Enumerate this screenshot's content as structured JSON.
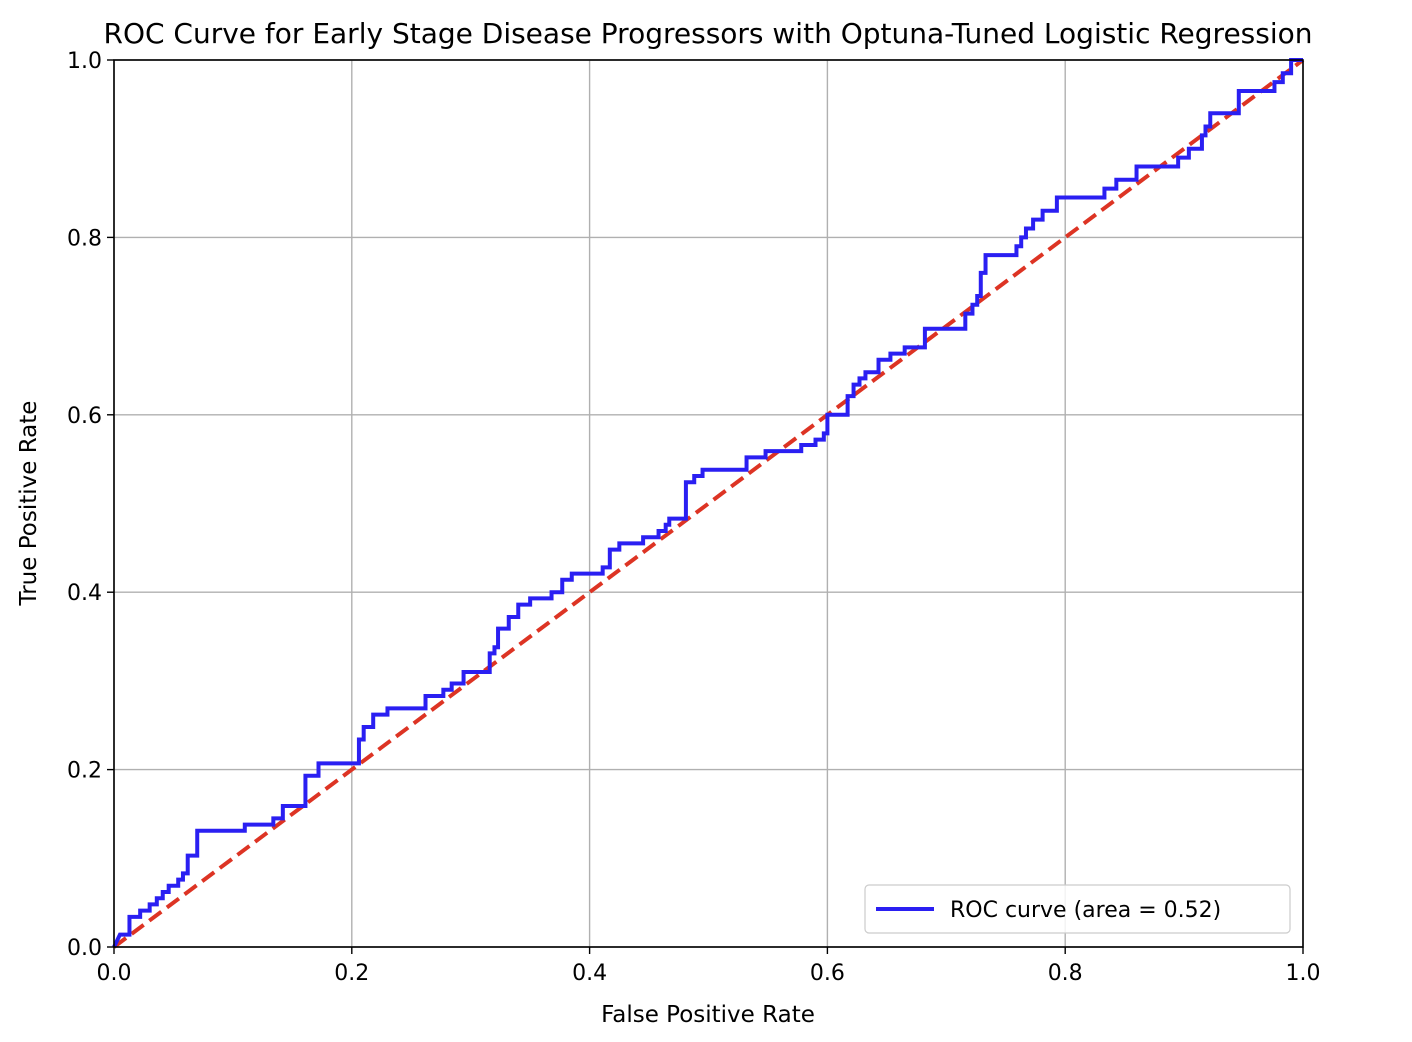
{
  "chart_data": {
    "type": "line",
    "title": "ROC Curve for Early Stage Disease Progressors with Optuna-Tuned Logistic Regression",
    "xlabel": "False Positive Rate",
    "ylabel": "True Positive Rate",
    "xlim": [
      0.0,
      1.0
    ],
    "ylim": [
      0.0,
      1.0
    ],
    "xticks": [
      "0.0",
      "0.2",
      "0.4",
      "0.6",
      "0.8",
      "1.0"
    ],
    "yticks": [
      "0.0",
      "0.2",
      "0.4",
      "0.6",
      "0.8",
      "1.0"
    ],
    "grid": true,
    "legend_position": "lower-right",
    "series": [
      {
        "name": "ROC curve (area = 0.52)",
        "color": "#2a1ff2",
        "style": "solid",
        "x": [
          0.0,
          0.005,
          0.013,
          0.013,
          0.022,
          0.022,
          0.03,
          0.03,
          0.036,
          0.036,
          0.041,
          0.041,
          0.046,
          0.046,
          0.054,
          0.054,
          0.058,
          0.058,
          0.062,
          0.062,
          0.07,
          0.07,
          0.11,
          0.11,
          0.134,
          0.134,
          0.142,
          0.142,
          0.161,
          0.161,
          0.172,
          0.172,
          0.206,
          0.206,
          0.21,
          0.21,
          0.218,
          0.218,
          0.23,
          0.23,
          0.262,
          0.262,
          0.277,
          0.277,
          0.284,
          0.284,
          0.294,
          0.294,
          0.316,
          0.316,
          0.32,
          0.32,
          0.323,
          0.323,
          0.332,
          0.332,
          0.34,
          0.34,
          0.35,
          0.35,
          0.368,
          0.368,
          0.377,
          0.377,
          0.385,
          0.385,
          0.411,
          0.411,
          0.417,
          0.417,
          0.425,
          0.425,
          0.445,
          0.445,
          0.458,
          0.458,
          0.464,
          0.464,
          0.467,
          0.467,
          0.481,
          0.481,
          0.488,
          0.488,
          0.495,
          0.495,
          0.532,
          0.532,
          0.548,
          0.548,
          0.578,
          0.578,
          0.59,
          0.59,
          0.597,
          0.597,
          0.6,
          0.6,
          0.617,
          0.617,
          0.622,
          0.622,
          0.627,
          0.627,
          0.632,
          0.632,
          0.643,
          0.643,
          0.653,
          0.653,
          0.665,
          0.665,
          0.682,
          0.682,
          0.716,
          0.716,
          0.722,
          0.722,
          0.726,
          0.726,
          0.729,
          0.729,
          0.733,
          0.733,
          0.733,
          0.733,
          0.759,
          0.759,
          0.763,
          0.763,
          0.767,
          0.767,
          0.773,
          0.773,
          0.781,
          0.781,
          0.793,
          0.793,
          0.833,
          0.833,
          0.843,
          0.843,
          0.86,
          0.86,
          0.895,
          0.895,
          0.904,
          0.904,
          0.915,
          0.915,
          0.918,
          0.918,
          0.922,
          0.922,
          0.946,
          0.946,
          0.976,
          0.976,
          0.983,
          0.983,
          0.99,
          0.99,
          1.0
        ],
        "y": [
          0.0,
          0.014,
          0.014,
          0.034,
          0.034,
          0.041,
          0.041,
          0.048,
          0.048,
          0.055,
          0.055,
          0.062,
          0.062,
          0.069,
          0.069,
          0.076,
          0.076,
          0.083,
          0.083,
          0.103,
          0.103,
          0.131,
          0.131,
          0.138,
          0.138,
          0.145,
          0.145,
          0.159,
          0.159,
          0.193,
          0.193,
          0.207,
          0.207,
          0.234,
          0.234,
          0.248,
          0.248,
          0.262,
          0.262,
          0.269,
          0.269,
          0.283,
          0.283,
          0.29,
          0.29,
          0.297,
          0.297,
          0.31,
          0.31,
          0.331,
          0.331,
          0.338,
          0.338,
          0.359,
          0.359,
          0.372,
          0.372,
          0.386,
          0.386,
          0.393,
          0.393,
          0.4,
          0.4,
          0.414,
          0.414,
          0.421,
          0.421,
          0.428,
          0.428,
          0.448,
          0.448,
          0.455,
          0.455,
          0.462,
          0.462,
          0.469,
          0.469,
          0.476,
          0.476,
          0.483,
          0.483,
          0.524,
          0.524,
          0.531,
          0.531,
          0.538,
          0.538,
          0.552,
          0.552,
          0.559,
          0.559,
          0.566,
          0.566,
          0.572,
          0.572,
          0.579,
          0.579,
          0.6,
          0.6,
          0.621,
          0.621,
          0.634,
          0.634,
          0.641,
          0.641,
          0.648,
          0.648,
          0.662,
          0.662,
          0.669,
          0.669,
          0.676,
          0.676,
          0.697,
          0.697,
          0.714,
          0.714,
          0.724,
          0.724,
          0.734,
          0.734,
          0.76,
          0.76,
          0.77,
          0.77,
          0.78,
          0.78,
          0.79,
          0.79,
          0.8,
          0.8,
          0.81,
          0.81,
          0.82,
          0.82,
          0.83,
          0.83,
          0.845,
          0.845,
          0.855,
          0.855,
          0.865,
          0.865,
          0.88,
          0.88,
          0.89,
          0.89,
          0.9,
          0.9,
          0.915,
          0.915,
          0.925,
          0.925,
          0.94,
          0.94,
          0.965,
          0.965,
          0.975,
          0.975,
          0.985,
          0.985,
          1.0,
          1.0
        ]
      },
      {
        "name": "",
        "color": "#dd3424",
        "style": "dashed",
        "x": [
          0.0,
          1.0
        ],
        "y": [
          0.0,
          1.0
        ]
      }
    ]
  }
}
